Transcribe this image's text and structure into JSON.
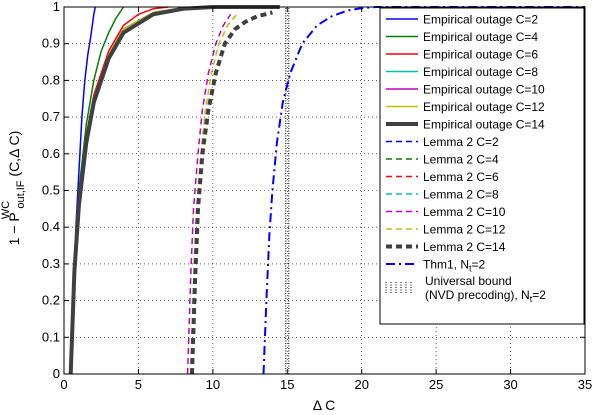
{
  "chart_data": {
    "type": "line",
    "xlabel": "Δ C",
    "ylabel": {
      "prefix": "1 − P",
      "superscript": "WC",
      "subscript": "out,IF",
      "suffix": "(C,Δ C)"
    },
    "xlim": [
      0,
      35
    ],
    "ylim": [
      0,
      1
    ],
    "xticks": [
      0,
      5,
      10,
      15,
      20,
      25,
      30,
      35
    ],
    "yticks": [
      0,
      0.1,
      0.2,
      0.3,
      0.4,
      0.5,
      0.6,
      0.7,
      0.8,
      0.9,
      1
    ],
    "xtick_labels": [
      "0",
      "5",
      "10",
      "15",
      "20",
      "25",
      "30",
      "35"
    ],
    "ytick_labels": [
      "0",
      "0.1",
      "0.2",
      "0.3",
      "0.4",
      "0.5",
      "0.6",
      "0.7",
      "0.8",
      "0.9",
      "1"
    ],
    "grid": true,
    "legend_position": "top-right",
    "series": [
      {
        "name": "Empirical outage C=2",
        "color": "#0000ff",
        "style": "solid",
        "width": 1.5,
        "x": [
          0.45,
          0.6,
          0.8,
          1.0,
          1.2,
          1.4,
          1.6,
          1.8,
          2.0,
          2.1
        ],
        "y": [
          0,
          0.2,
          0.4,
          0.55,
          0.7,
          0.8,
          0.87,
          0.92,
          0.98,
          1.0
        ]
      },
      {
        "name": "Empirical outage C=4",
        "color": "#008000",
        "style": "solid",
        "width": 1.5,
        "x": [
          0.45,
          0.7,
          1.0,
          1.5,
          2.0,
          2.5,
          3.0,
          3.5,
          4.0
        ],
        "y": [
          0,
          0.3,
          0.5,
          0.68,
          0.8,
          0.88,
          0.93,
          0.97,
          1.0
        ]
      },
      {
        "name": "Empirical outage C=6",
        "color": "#ff0000",
        "style": "solid",
        "width": 1.5,
        "x": [
          0.45,
          0.7,
          1.0,
          1.5,
          2.0,
          3.0,
          4.0,
          5.0,
          6.0,
          7.0
        ],
        "y": [
          0,
          0.3,
          0.48,
          0.65,
          0.76,
          0.88,
          0.95,
          0.98,
          0.995,
          1.0
        ]
      },
      {
        "name": "Empirical outage C=8",
        "color": "#00bfbf",
        "style": "solid",
        "width": 1.5,
        "x": [
          0.45,
          0.7,
          1.0,
          1.5,
          2.0,
          3.0,
          4.0,
          6.0,
          8.0,
          10.0
        ],
        "y": [
          0,
          0.29,
          0.47,
          0.64,
          0.75,
          0.87,
          0.94,
          0.985,
          0.998,
          1.0
        ]
      },
      {
        "name": "Empirical outage C=10",
        "color": "#bf00bf",
        "style": "solid",
        "width": 1.5,
        "x": [
          0.45,
          0.7,
          1.0,
          1.5,
          2.0,
          3.0,
          4.0,
          6.0,
          8.0,
          11.0
        ],
        "y": [
          0,
          0.29,
          0.47,
          0.64,
          0.75,
          0.87,
          0.94,
          0.985,
          0.998,
          1.0
        ]
      },
      {
        "name": "Empirical outage C=12",
        "color": "#bfbf00",
        "style": "solid",
        "width": 1.5,
        "x": [
          0.45,
          0.7,
          1.0,
          1.5,
          2.0,
          3.0,
          4.0,
          6.0,
          8.0,
          12.0
        ],
        "y": [
          0,
          0.29,
          0.47,
          0.64,
          0.75,
          0.87,
          0.94,
          0.985,
          0.998,
          1.0
        ]
      },
      {
        "name": "Empirical outage C=14",
        "color": "#404040",
        "style": "solid",
        "width": 4,
        "x": [
          0.45,
          0.7,
          1.0,
          1.5,
          2.0,
          3.0,
          4.0,
          6.0,
          8.0,
          10.0,
          14.5
        ],
        "y": [
          0,
          0.28,
          0.46,
          0.63,
          0.74,
          0.86,
          0.93,
          0.98,
          0.995,
          1.0,
          1.0
        ]
      },
      {
        "name": "Lemma 2 C=2",
        "color": "#0000ff",
        "style": "dash",
        "width": 1.5,
        "x": [],
        "y": []
      },
      {
        "name": "Lemma 2 C=4",
        "color": "#008000",
        "style": "dash",
        "width": 1.5,
        "x": [],
        "y": []
      },
      {
        "name": "Lemma 2 C=6",
        "color": "#ff0000",
        "style": "dash",
        "width": 1.5,
        "x": [],
        "y": []
      },
      {
        "name": "Lemma 2 C=8",
        "color": "#00bfbf",
        "style": "dash",
        "width": 1.5,
        "x": [],
        "y": []
      },
      {
        "name": "Lemma 2 C=10",
        "color": "#bf00bf",
        "style": "dash",
        "width": 1.5,
        "x": [
          8.3,
          8.5,
          8.7,
          9.0,
          9.3,
          9.7,
          10.2,
          10.7,
          11.2
        ],
        "y": [
          0,
          0.25,
          0.45,
          0.6,
          0.72,
          0.82,
          0.9,
          0.95,
          0.98
        ]
      },
      {
        "name": "Lemma 2 C=12",
        "color": "#bfbf00",
        "style": "dash",
        "width": 1.5,
        "x": [
          8.5,
          8.7,
          8.9,
          9.2,
          9.5,
          9.9,
          10.4,
          11.0,
          11.6
        ],
        "y": [
          0,
          0.25,
          0.45,
          0.6,
          0.72,
          0.82,
          0.9,
          0.95,
          0.98
        ]
      },
      {
        "name": "Lemma 2 C=14",
        "color": "#404040",
        "style": "dash",
        "width": 4,
        "x": [
          8.6,
          8.8,
          9.0,
          9.3,
          9.7,
          10.2,
          10.8,
          11.5,
          12.2,
          13.0,
          14.0
        ],
        "y": [
          0,
          0.25,
          0.45,
          0.6,
          0.72,
          0.82,
          0.9,
          0.94,
          0.96,
          0.975,
          0.985
        ]
      },
      {
        "name": "Thm1, Nₜ=2",
        "color": "#0000ff",
        "style": "dashdot",
        "width": 2,
        "x": [
          13.4,
          13.6,
          13.8,
          14.0,
          14.3,
          14.7,
          15.2,
          16.0,
          17.0,
          18.0,
          19.0,
          20.0,
          21.0,
          35.0
        ],
        "y": [
          0,
          0.2,
          0.38,
          0.5,
          0.63,
          0.74,
          0.82,
          0.9,
          0.95,
          0.975,
          0.99,
          0.997,
          1.0,
          1.0
        ]
      },
      {
        "name": "Universal bound (NVD precoding), Nₜ=2",
        "color": "#000000",
        "style": "dotted-vertical",
        "width": 3,
        "x": [
          15.0,
          15.0
        ],
        "y": [
          0,
          1
        ]
      }
    ]
  },
  "legend": {
    "items": [
      "Empirical outage C=2",
      "Empirical outage C=4",
      "Empirical outage C=6",
      "Empirical outage C=8",
      "Empirical outage C=10",
      "Empirical outage C=12",
      "Empirical outage C=14",
      "Lemma 2 C=2",
      "Lemma 2 C=4",
      "Lemma 2 C=6",
      "Lemma 2 C=8",
      "Lemma 2 C=10",
      "Lemma 2 C=12",
      "Lemma 2 C=14"
    ],
    "thm_label": {
      "main": "Thm1, N",
      "sub": "t",
      "tail": "=2"
    },
    "bound_label": {
      "line1": "Universal bound",
      "line2_main": "(NVD precoding), N",
      "line2_sub": "t",
      "line2_tail": "=2"
    }
  }
}
